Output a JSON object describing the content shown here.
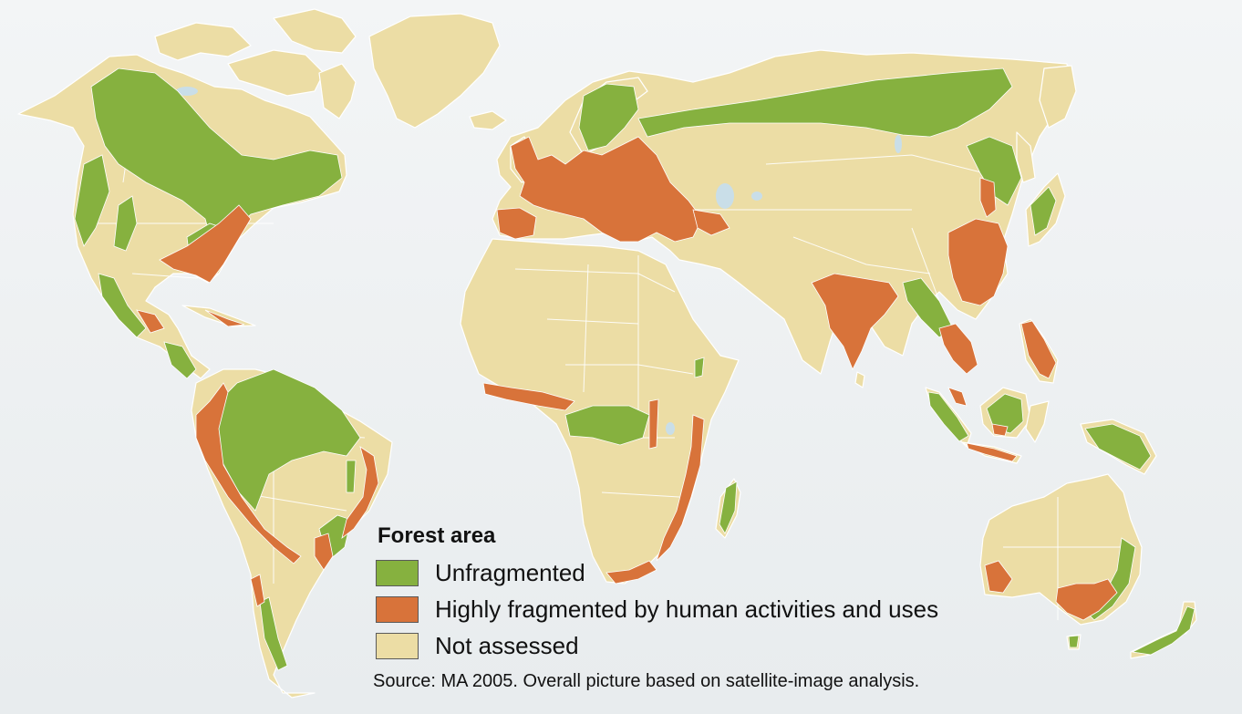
{
  "legend": {
    "title": "Forest area",
    "items": [
      {
        "label": "Unfragmented",
        "color": "#86b13f"
      },
      {
        "label": "Highly fragmented by human activities and uses",
        "color": "#d8733a"
      },
      {
        "label": "Not assessed",
        "color": "#ecdda5"
      }
    ]
  },
  "source": "Source: MA 2005. Overall picture based on satellite-image analysis.",
  "colors": {
    "land": "#ecdda5",
    "unfragmented": "#86b13f",
    "fragmented": "#d8733a",
    "water": "#e9edef"
  }
}
